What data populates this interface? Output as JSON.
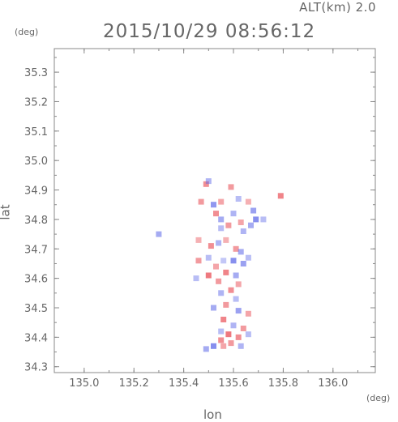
{
  "header": {
    "altitude_label": "ALT(km) 2.0",
    "timestamp": "2015/10/29 08:56:12"
  },
  "axes": {
    "x_label": "lon",
    "y_label": "lat",
    "x_unit": "(deg)",
    "y_unit": "(deg)"
  },
  "colors": {
    "positive": "#e8474f",
    "negative": "#5b66e8",
    "frame": "#888888"
  },
  "chart_data": {
    "type": "heatmap",
    "title": "2015/10/29 08:56:12",
    "subtitle": "ALT(km) 2.0",
    "xlabel": "lon",
    "ylabel": "lat",
    "xlim": [
      134.88,
      136.17
    ],
    "ylim": [
      34.28,
      35.38
    ],
    "x_ticks": [
      135.0,
      135.2,
      135.4,
      135.6,
      135.8,
      136.0
    ],
    "x_tick_labels": [
      "135.0",
      "135.2",
      "135.4",
      "135.6",
      "135.8",
      "136.0"
    ],
    "y_ticks": [
      34.3,
      34.4,
      34.5,
      34.6,
      34.7,
      34.8,
      34.9,
      35.0,
      35.1,
      35.2,
      35.3
    ],
    "y_tick_labels": [
      "34.3",
      "34.4",
      "34.5",
      "34.6",
      "34.7",
      "34.8",
      "34.9",
      "35.0",
      "35.1",
      "35.2",
      "35.3"
    ],
    "grid": false,
    "cells": [
      {
        "lon": 135.49,
        "lat": 34.92,
        "v": 0.6
      },
      {
        "lon": 135.5,
        "lat": 34.93,
        "v": -0.4
      },
      {
        "lon": 135.59,
        "lat": 34.91,
        "v": 0.5
      },
      {
        "lon": 135.47,
        "lat": 34.86,
        "v": 0.5
      },
      {
        "lon": 135.52,
        "lat": 34.85,
        "v": -0.7
      },
      {
        "lon": 135.55,
        "lat": 34.86,
        "v": 0.4
      },
      {
        "lon": 135.62,
        "lat": 34.87,
        "v": -0.3
      },
      {
        "lon": 135.66,
        "lat": 34.86,
        "v": 0.3
      },
      {
        "lon": 135.68,
        "lat": 34.83,
        "v": -0.6
      },
      {
        "lon": 135.69,
        "lat": 34.8,
        "v": -0.8
      },
      {
        "lon": 135.67,
        "lat": 34.78,
        "v": -0.5
      },
      {
        "lon": 135.63,
        "lat": 34.79,
        "v": 0.4
      },
      {
        "lon": 135.6,
        "lat": 34.82,
        "v": -0.4
      },
      {
        "lon": 135.55,
        "lat": 34.8,
        "v": -0.5
      },
      {
        "lon": 135.53,
        "lat": 34.82,
        "v": 0.6
      },
      {
        "lon": 135.55,
        "lat": 34.77,
        "v": -0.3
      },
      {
        "lon": 135.58,
        "lat": 34.78,
        "v": 0.5
      },
      {
        "lon": 135.64,
        "lat": 34.76,
        "v": -0.4
      },
      {
        "lon": 135.72,
        "lat": 34.8,
        "v": -0.3
      },
      {
        "lon": 135.79,
        "lat": 34.88,
        "v": 0.7
      },
      {
        "lon": 135.3,
        "lat": 34.75,
        "v": -0.5
      },
      {
        "lon": 135.46,
        "lat": 34.73,
        "v": 0.3
      },
      {
        "lon": 135.51,
        "lat": 34.71,
        "v": 0.6
      },
      {
        "lon": 135.54,
        "lat": 34.72,
        "v": -0.4
      },
      {
        "lon": 135.57,
        "lat": 34.73,
        "v": 0.3
      },
      {
        "lon": 135.61,
        "lat": 34.7,
        "v": 0.5
      },
      {
        "lon": 135.63,
        "lat": 34.69,
        "v": -0.5
      },
      {
        "lon": 135.66,
        "lat": 34.67,
        "v": -0.3
      },
      {
        "lon": 135.5,
        "lat": 34.67,
        "v": -0.3
      },
      {
        "lon": 135.46,
        "lat": 34.66,
        "v": 0.5
      },
      {
        "lon": 135.53,
        "lat": 34.64,
        "v": 0.4
      },
      {
        "lon": 135.56,
        "lat": 34.66,
        "v": -0.2
      },
      {
        "lon": 135.6,
        "lat": 34.66,
        "v": -0.8
      },
      {
        "lon": 135.64,
        "lat": 34.65,
        "v": -0.6
      },
      {
        "lon": 135.57,
        "lat": 34.62,
        "v": 0.7
      },
      {
        "lon": 135.61,
        "lat": 34.61,
        "v": -0.5
      },
      {
        "lon": 135.5,
        "lat": 34.61,
        "v": 0.8
      },
      {
        "lon": 135.45,
        "lat": 34.6,
        "v": -0.3
      },
      {
        "lon": 135.54,
        "lat": 34.59,
        "v": 0.5
      },
      {
        "lon": 135.62,
        "lat": 34.58,
        "v": 0.4
      },
      {
        "lon": 135.55,
        "lat": 34.55,
        "v": -0.4
      },
      {
        "lon": 135.59,
        "lat": 34.56,
        "v": 0.6
      },
      {
        "lon": 135.61,
        "lat": 34.53,
        "v": -0.3
      },
      {
        "lon": 135.57,
        "lat": 34.51,
        "v": 0.5
      },
      {
        "lon": 135.52,
        "lat": 34.5,
        "v": -0.5
      },
      {
        "lon": 135.62,
        "lat": 34.49,
        "v": -0.6
      },
      {
        "lon": 135.66,
        "lat": 34.48,
        "v": 0.4
      },
      {
        "lon": 135.56,
        "lat": 34.46,
        "v": 0.7
      },
      {
        "lon": 135.6,
        "lat": 34.44,
        "v": -0.4
      },
      {
        "lon": 135.64,
        "lat": 34.43,
        "v": 0.5
      },
      {
        "lon": 135.55,
        "lat": 34.42,
        "v": -0.3
      },
      {
        "lon": 135.58,
        "lat": 34.41,
        "v": 0.8
      },
      {
        "lon": 135.62,
        "lat": 34.4,
        "v": 0.6
      },
      {
        "lon": 135.66,
        "lat": 34.41,
        "v": -0.3
      },
      {
        "lon": 135.55,
        "lat": 34.39,
        "v": 0.6
      },
      {
        "lon": 135.59,
        "lat": 34.38,
        "v": 0.5
      },
      {
        "lon": 135.52,
        "lat": 34.37,
        "v": -0.8
      },
      {
        "lon": 135.49,
        "lat": 34.36,
        "v": -0.5
      },
      {
        "lon": 135.56,
        "lat": 34.37,
        "v": 0.4
      },
      {
        "lon": 135.63,
        "lat": 34.37,
        "v": -0.4
      }
    ]
  }
}
